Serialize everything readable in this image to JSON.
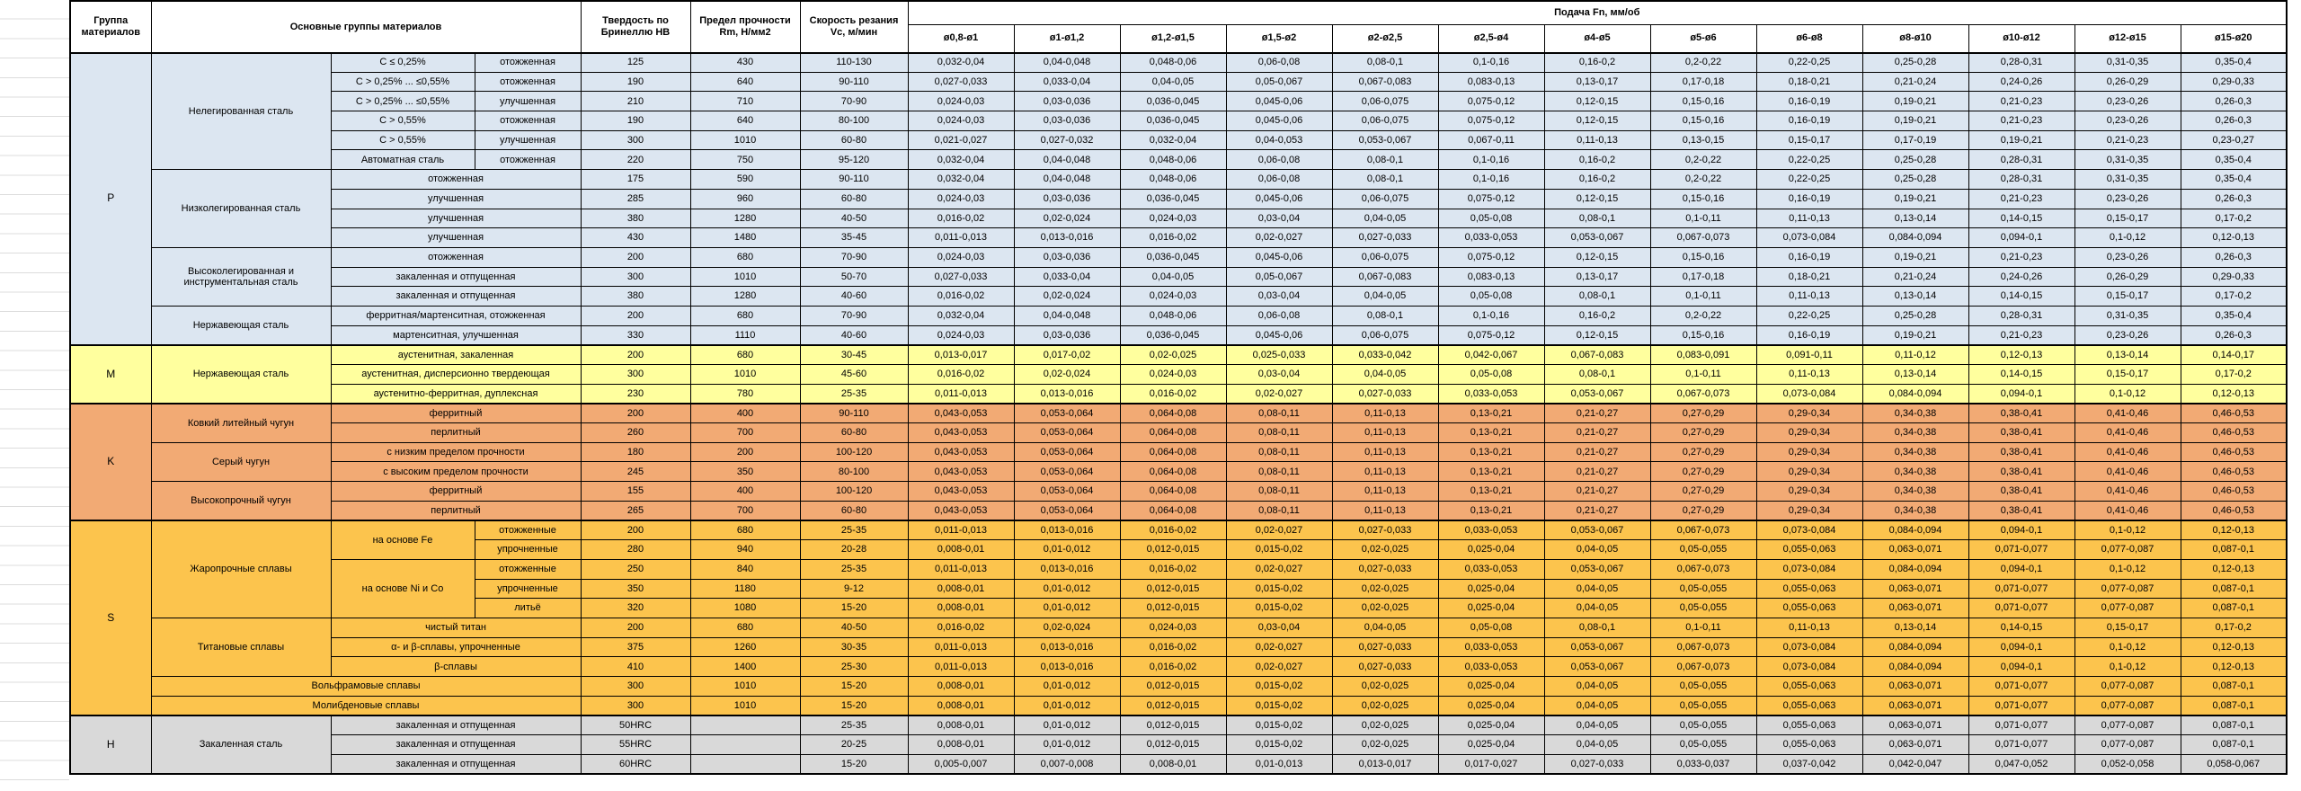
{
  "header": {
    "group": "Группа материалов",
    "main_groups": "Основные группы материалов",
    "hardness": "Твердость по Бринеллю HB",
    "strength": "Предел прочности Rm, Н/мм2",
    "speed": "Скорость резания Vc, м/мин",
    "feed": "Подача Fn, мм/об",
    "feed_ranges": [
      "ø0,8-ø1",
      "ø1-ø1,2",
      "ø1,2-ø1,5",
      "ø1,5-ø2",
      "ø2-ø2,5",
      "ø2,5-ø4",
      "ø4-ø5",
      "ø5-ø6",
      "ø6-ø8",
      "ø8-ø10",
      "ø10-ø12",
      "ø12-ø15",
      "ø15-ø20"
    ]
  },
  "section_colors": {
    "P": "#dce6f1",
    "M": "#ffff9e",
    "K": "#f2aa74",
    "S": "#fcc44d",
    "H": "#d9d9d9"
  },
  "feed_patterns": {
    "F1": [
      "0,032-0,04",
      "0,04-0,048",
      "0,048-0,06",
      "0,06-0,08",
      "0,08-0,1",
      "0,1-0,16",
      "0,16-0,2",
      "0,2-0,22",
      "0,22-0,25",
      "0,25-0,28",
      "0,28-0,31",
      "0,31-0,35",
      "0,35-0,4"
    ],
    "F2": [
      "0,027-0,033",
      "0,033-0,04",
      "0,04-0,05",
      "0,05-0,067",
      "0,067-0,083",
      "0,083-0,13",
      "0,13-0,17",
      "0,17-0,18",
      "0,18-0,21",
      "0,21-0,24",
      "0,24-0,26",
      "0,26-0,29",
      "0,29-0,33"
    ],
    "F3": [
      "0,024-0,03",
      "0,03-0,036",
      "0,036-0,045",
      "0,045-0,06",
      "0,06-0,075",
      "0,075-0,12",
      "0,12-0,15",
      "0,15-0,16",
      "0,16-0,19",
      "0,19-0,21",
      "0,21-0,23",
      "0,23-0,26",
      "0,26-0,3"
    ],
    "F5": [
      "0,021-0,027",
      "0,027-0,032",
      "0,032-0,04",
      "0,04-0,053",
      "0,053-0,067",
      "0,067-0,11",
      "0,11-0,13",
      "0,13-0,15",
      "0,15-0,17",
      "0,17-0,19",
      "0,19-0,21",
      "0,21-0,23",
      "0,23-0,27"
    ],
    "F9": [
      "0,016-0,02",
      "0,02-0,024",
      "0,024-0,03",
      "0,03-0,04",
      "0,04-0,05",
      "0,05-0,08",
      "0,08-0,1",
      "0,1-0,11",
      "0,11-0,13",
      "0,13-0,14",
      "0,14-0,15",
      "0,15-0,17",
      "0,17-0,2"
    ],
    "F10": [
      "0,011-0,013",
      "0,013-0,016",
      "0,016-0,02",
      "0,02-0,027",
      "0,027-0,033",
      "0,033-0,053",
      "0,053-0,067",
      "0,067-0,073",
      "0,073-0,084",
      "0,084-0,094",
      "0,094-0,1",
      "0,1-0,12",
      "0,12-0,13"
    ],
    "FM1": [
      "0,013-0,017",
      "0,017-0,02",
      "0,02-0,025",
      "0,025-0,033",
      "0,033-0,042",
      "0,042-0,067",
      "0,067-0,083",
      "0,083-0,091",
      "0,091-0,11",
      "0,11-0,12",
      "0,12-0,13",
      "0,13-0,14",
      "0,14-0,17"
    ],
    "FK": [
      "0,043-0,053",
      "0,053-0,064",
      "0,064-0,08",
      "0,08-0,11",
      "0,11-0,13",
      "0,13-0,21",
      "0,21-0,27",
      "0,27-0,29",
      "0,29-0,34",
      "0,34-0,38",
      "0,38-0,41",
      "0,41-0,46",
      "0,46-0,53"
    ],
    "FS2": [
      "0,008-0,01",
      "0,01-0,012",
      "0,012-0,015",
      "0,015-0,02",
      "0,02-0,025",
      "0,025-0,04",
      "0,04-0,05",
      "0,05-0,055",
      "0,055-0,063",
      "0,063-0,071",
      "0,071-0,077",
      "0,077-0,087",
      "0,087-0,1"
    ],
    "FH3": [
      "0,005-0,007",
      "0,007-0,008",
      "0,008-0,01",
      "0,01-0,013",
      "0,013-0,017",
      "0,017-0,027",
      "0,027-0,033",
      "0,033-0,037",
      "0,037-0,042",
      "0,042-0,047",
      "0,047-0,052",
      "0,052-0,058",
      "0,058-0,067"
    ]
  },
  "rows": [
    {
      "sec": "P",
      "start": true,
      "feeds": "F1",
      "cells": [
        {
          "t": "P",
          "rs": 15,
          "n": "group"
        },
        {
          "t": "Нелегированная сталь",
          "rs": 6,
          "n": "family"
        },
        {
          "t": "C ≤ 0,25%",
          "n": "desc"
        },
        {
          "t": "отожженная",
          "n": "desc"
        },
        {
          "t": "125"
        },
        {
          "t": "430"
        },
        {
          "t": "110-130"
        }
      ]
    },
    {
      "sec": "P",
      "feeds": "F2",
      "cells": [
        {
          "t": "C > 0,25% ... ≤0,55%",
          "n": "desc"
        },
        {
          "t": "отожженная",
          "n": "desc"
        },
        {
          "t": "190"
        },
        {
          "t": "640"
        },
        {
          "t": "90-110"
        }
      ]
    },
    {
      "sec": "P",
      "feeds": "F3",
      "cells": [
        {
          "t": "C > 0,25% ... ≤0,55%",
          "n": "desc"
        },
        {
          "t": "улучшенная",
          "n": "desc"
        },
        {
          "t": "210"
        },
        {
          "t": "710"
        },
        {
          "t": "70-90"
        }
      ]
    },
    {
      "sec": "P",
      "feeds": "F3",
      "cells": [
        {
          "t": "C > 0,55%",
          "n": "desc"
        },
        {
          "t": "отожженная",
          "n": "desc"
        },
        {
          "t": "190"
        },
        {
          "t": "640"
        },
        {
          "t": "80-100"
        }
      ]
    },
    {
      "sec": "P",
      "feeds": "F5",
      "cells": [
        {
          "t": "C > 0,55%",
          "n": "desc"
        },
        {
          "t": "улучшенная",
          "n": "desc"
        },
        {
          "t": "300"
        },
        {
          "t": "1010"
        },
        {
          "t": "60-80"
        }
      ]
    },
    {
      "sec": "P",
      "feeds": "F1",
      "cells": [
        {
          "t": "Автоматная сталь",
          "n": "desc"
        },
        {
          "t": "отожженная",
          "n": "desc"
        },
        {
          "t": "220"
        },
        {
          "t": "750"
        },
        {
          "t": "95-120"
        }
      ]
    },
    {
      "sec": "P",
      "feeds": "F1",
      "cells": [
        {
          "t": "Низколегированная сталь",
          "rs": 4,
          "n": "family"
        },
        {
          "t": "отожженная",
          "cs": 2,
          "n": "desc"
        },
        {
          "t": "175"
        },
        {
          "t": "590"
        },
        {
          "t": "90-110"
        }
      ]
    },
    {
      "sec": "P",
      "feeds": "F3",
      "cells": [
        {
          "t": "улучшенная",
          "cs": 2,
          "n": "desc"
        },
        {
          "t": "285"
        },
        {
          "t": "960"
        },
        {
          "t": "60-80"
        }
      ]
    },
    {
      "sec": "P",
      "feeds": "F9",
      "cells": [
        {
          "t": "улучшенная",
          "cs": 2,
          "n": "desc"
        },
        {
          "t": "380"
        },
        {
          "t": "1280"
        },
        {
          "t": "40-50"
        }
      ]
    },
    {
      "sec": "P",
      "feeds": "F10",
      "cells": [
        {
          "t": "улучшенная",
          "cs": 2,
          "n": "desc"
        },
        {
          "t": "430"
        },
        {
          "t": "1480"
        },
        {
          "t": "35-45"
        }
      ]
    },
    {
      "sec": "P",
      "feeds": "F3",
      "cells": [
        {
          "t": "Высоколегированная и инструментальная сталь",
          "rs": 3,
          "n": "family"
        },
        {
          "t": "отожженная",
          "cs": 2,
          "n": "desc"
        },
        {
          "t": "200"
        },
        {
          "t": "680"
        },
        {
          "t": "70-90"
        }
      ]
    },
    {
      "sec": "P",
      "feeds": "F2",
      "cells": [
        {
          "t": "закаленная и отпущенная",
          "cs": 2,
          "n": "desc"
        },
        {
          "t": "300"
        },
        {
          "t": "1010"
        },
        {
          "t": "50-70"
        }
      ]
    },
    {
      "sec": "P",
      "feeds": "F9",
      "cells": [
        {
          "t": "закаленная и отпущенная",
          "cs": 2,
          "n": "desc"
        },
        {
          "t": "380"
        },
        {
          "t": "1280"
        },
        {
          "t": "40-60"
        }
      ]
    },
    {
      "sec": "P",
      "feeds": "F1",
      "cells": [
        {
          "t": "Нержавеющая сталь",
          "rs": 2,
          "n": "family"
        },
        {
          "t": "ферритная/мартенситная, отожженная",
          "cs": 2,
          "n": "desc"
        },
        {
          "t": "200"
        },
        {
          "t": "680"
        },
        {
          "t": "70-90"
        }
      ]
    },
    {
      "sec": "P",
      "feeds": "F3",
      "cells": [
        {
          "t": "мартенситная, улучшенная",
          "cs": 2,
          "n": "desc"
        },
        {
          "t": "330"
        },
        {
          "t": "1110"
        },
        {
          "t": "40-60"
        }
      ]
    },
    {
      "sec": "M",
      "start": true,
      "feeds": "FM1",
      "cells": [
        {
          "t": "M",
          "rs": 3,
          "n": "group"
        },
        {
          "t": "Нержавеющая сталь",
          "rs": 3,
          "n": "family"
        },
        {
          "t": "аустенитная, закаленная",
          "cs": 2,
          "n": "desc"
        },
        {
          "t": "200"
        },
        {
          "t": "680"
        },
        {
          "t": "30-45"
        }
      ]
    },
    {
      "sec": "M",
      "feeds": "F9",
      "cells": [
        {
          "t": "аустенитная, дисперсионно твердеющая",
          "cs": 2,
          "n": "desc"
        },
        {
          "t": "300"
        },
        {
          "t": "1010"
        },
        {
          "t": "45-60"
        }
      ]
    },
    {
      "sec": "M",
      "feeds": "F10",
      "cells": [
        {
          "t": "аустенитно-ферритная, дуплексная",
          "cs": 2,
          "n": "desc"
        },
        {
          "t": "230"
        },
        {
          "t": "780"
        },
        {
          "t": "25-35"
        }
      ]
    },
    {
      "sec": "K",
      "start": true,
      "feeds": "FK",
      "cells": [
        {
          "t": "K",
          "rs": 6,
          "n": "group"
        },
        {
          "t": "Ковкий литейный чугун",
          "rs": 2,
          "n": "family"
        },
        {
          "t": "ферритный",
          "cs": 2,
          "n": "desc"
        },
        {
          "t": "200"
        },
        {
          "t": "400"
        },
        {
          "t": "90-110"
        }
      ]
    },
    {
      "sec": "K",
      "feeds": "FK",
      "cells": [
        {
          "t": "перлитный",
          "cs": 2,
          "n": "desc"
        },
        {
          "t": "260"
        },
        {
          "t": "700"
        },
        {
          "t": "60-80"
        }
      ]
    },
    {
      "sec": "K",
      "feeds": "FK",
      "cells": [
        {
          "t": "Серый чугун",
          "rs": 2,
          "n": "family"
        },
        {
          "t": "с низким пределом прочности",
          "cs": 2,
          "n": "desc"
        },
        {
          "t": "180"
        },
        {
          "t": "200"
        },
        {
          "t": "100-120"
        }
      ]
    },
    {
      "sec": "K",
      "feeds": "FK",
      "cells": [
        {
          "t": "с высоким пределом прочности",
          "cs": 2,
          "n": "desc"
        },
        {
          "t": "245"
        },
        {
          "t": "350"
        },
        {
          "t": "80-100"
        }
      ]
    },
    {
      "sec": "K",
      "feeds": "FK",
      "cells": [
        {
          "t": "Высокопрочный чугун",
          "rs": 2,
          "n": "family"
        },
        {
          "t": "ферритный",
          "cs": 2,
          "n": "desc"
        },
        {
          "t": "155"
        },
        {
          "t": "400"
        },
        {
          "t": "100-120"
        }
      ]
    },
    {
      "sec": "K",
      "feeds": "FK",
      "cells": [
        {
          "t": "перлитный",
          "cs": 2,
          "n": "desc"
        },
        {
          "t": "265"
        },
        {
          "t": "700"
        },
        {
          "t": "60-80"
        }
      ]
    },
    {
      "sec": "S",
      "start": true,
      "feeds": "F10",
      "cells": [
        {
          "t": "S",
          "rs": 10,
          "n": "group"
        },
        {
          "t": "Жаропрочные сплавы",
          "rs": 5,
          "n": "family"
        },
        {
          "t": "на основе Fe",
          "rs": 2,
          "n": "desc"
        },
        {
          "t": "отожженные",
          "n": "desc"
        },
        {
          "t": "200"
        },
        {
          "t": "680"
        },
        {
          "t": "25-35"
        }
      ]
    },
    {
      "sec": "S",
      "feeds": "FS2",
      "cells": [
        {
          "t": "упрочненные",
          "n": "desc"
        },
        {
          "t": "280"
        },
        {
          "t": "940"
        },
        {
          "t": "20-28"
        }
      ]
    },
    {
      "sec": "S",
      "feeds": "F10",
      "cells": [
        {
          "t": "на основе Ni и Co",
          "rs": 3,
          "n": "desc"
        },
        {
          "t": "отожженные",
          "n": "desc"
        },
        {
          "t": "250"
        },
        {
          "t": "840"
        },
        {
          "t": "25-35"
        }
      ]
    },
    {
      "sec": "S",
      "feeds": "FS2",
      "cells": [
        {
          "t": "упрочненные",
          "n": "desc"
        },
        {
          "t": "350"
        },
        {
          "t": "1180"
        },
        {
          "t": "9-12"
        }
      ]
    },
    {
      "sec": "S",
      "feeds": "FS2",
      "cells": [
        {
          "t": "литьё",
          "n": "desc"
        },
        {
          "t": "320"
        },
        {
          "t": "1080"
        },
        {
          "t": "15-20"
        }
      ]
    },
    {
      "sec": "S",
      "feeds": "F9",
      "cells": [
        {
          "t": "Титановые сплавы",
          "rs": 3,
          "n": "family"
        },
        {
          "t": "чистый титан",
          "cs": 2,
          "n": "desc"
        },
        {
          "t": "200"
        },
        {
          "t": "680"
        },
        {
          "t": "40-50"
        }
      ]
    },
    {
      "sec": "S",
      "feeds": "F10",
      "cells": [
        {
          "t": "α- и β-сплавы, упрочненные",
          "cs": 2,
          "n": "desc"
        },
        {
          "t": "375"
        },
        {
          "t": "1260"
        },
        {
          "t": "30-35"
        }
      ]
    },
    {
      "sec": "S",
      "feeds": "F10",
      "cells": [
        {
          "t": "β-сплавы",
          "cs": 2,
          "n": "desc"
        },
        {
          "t": "410"
        },
        {
          "t": "1400"
        },
        {
          "t": "25-30"
        }
      ]
    },
    {
      "sec": "S",
      "feeds": "FS2",
      "cells": [
        {
          "t": "Вольфрамовые сплавы",
          "cs": 3,
          "n": "family"
        },
        {
          "t": "300"
        },
        {
          "t": "1010"
        },
        {
          "t": "15-20"
        }
      ]
    },
    {
      "sec": "S",
      "feeds": "FS2",
      "cells": [
        {
          "t": "Молибденовые сплавы",
          "cs": 3,
          "n": "family"
        },
        {
          "t": "300"
        },
        {
          "t": "1010"
        },
        {
          "t": "15-20"
        }
      ]
    },
    {
      "sec": "H",
      "start": true,
      "feeds": "FS2",
      "cells": [
        {
          "t": "H",
          "rs": 3,
          "n": "group"
        },
        {
          "t": "Закаленная сталь",
          "rs": 3,
          "n": "family"
        },
        {
          "t": "закаленная и отпущенная",
          "cs": 2,
          "n": "desc"
        },
        {
          "t": "50HRC"
        },
        {
          "t": ""
        },
        {
          "t": "25-35"
        }
      ]
    },
    {
      "sec": "H",
      "feeds": "FS2",
      "cells": [
        {
          "t": "закаленная и отпущенная",
          "cs": 2,
          "n": "desc"
        },
        {
          "t": "55HRC"
        },
        {
          "t": ""
        },
        {
          "t": "20-25"
        }
      ]
    },
    {
      "sec": "H",
      "feeds": "FH3",
      "cells": [
        {
          "t": "закаленная и отпущенная",
          "cs": 2,
          "n": "desc"
        },
        {
          "t": "60HRC"
        },
        {
          "t": ""
        },
        {
          "t": "15-20"
        }
      ]
    }
  ]
}
